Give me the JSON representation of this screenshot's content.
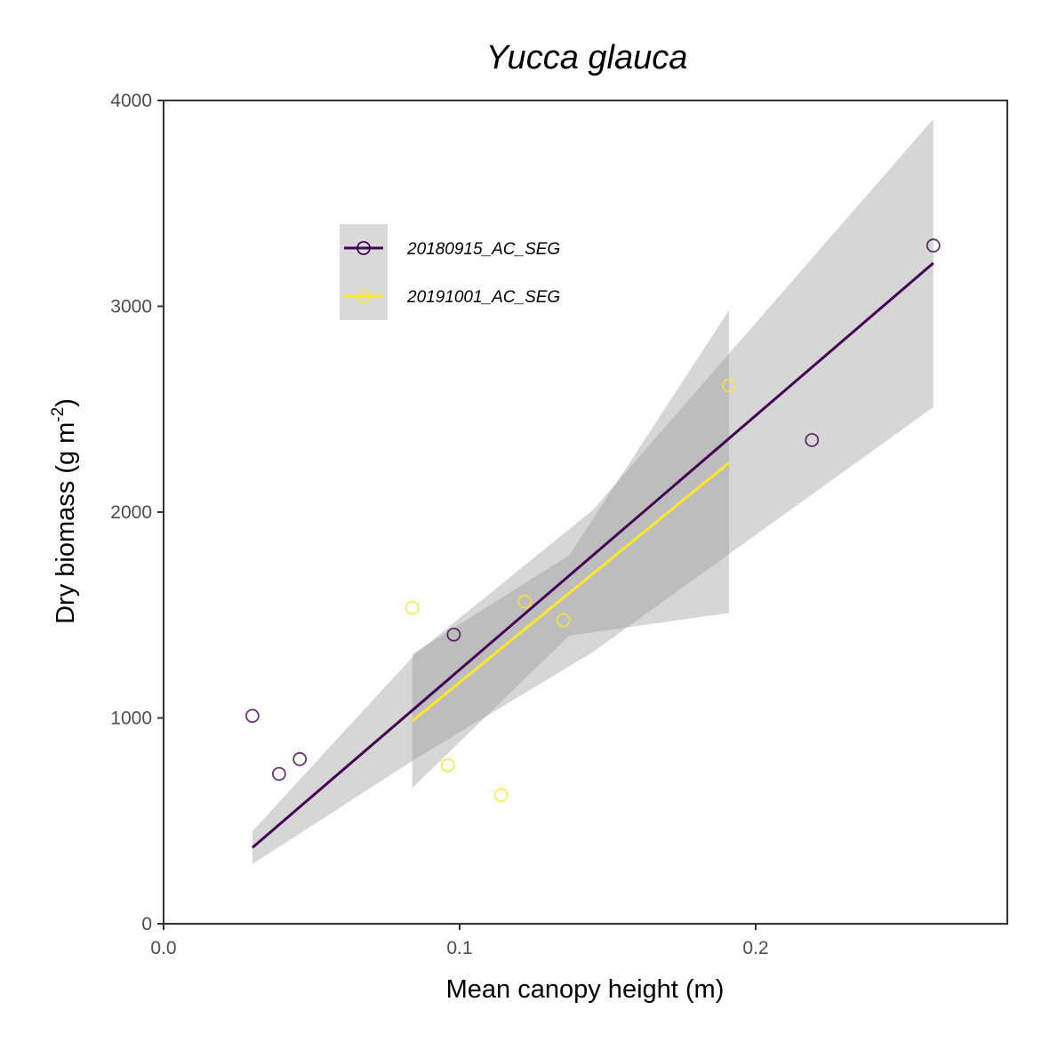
{
  "chart_data": {
    "type": "scatter",
    "title": "Yucca glauca",
    "xlabel": "Mean canopy height (m)",
    "ylabel_main": "Dry biomass (g m",
    "ylabel_sup": "-2",
    "ylabel_close": ")",
    "xlim": [
      0,
      0.285
    ],
    "ylim": [
      0,
      4000
    ],
    "xticks": [
      0.0,
      0.1,
      0.2
    ],
    "xtick_labels": [
      "0.0",
      "0.1",
      "0.2"
    ],
    "yticks": [
      0,
      1000,
      2000,
      3000,
      4000
    ],
    "ytick_labels": [
      "0",
      "1000",
      "2000",
      "3000",
      "4000"
    ],
    "grid": false,
    "legend_position": "top-left",
    "series": [
      {
        "name": "20180915_AC_SEG",
        "color": "#440154",
        "points": [
          [
            0.03,
            1010
          ],
          [
            0.039,
            728
          ],
          [
            0.046,
            800
          ],
          [
            0.098,
            1405
          ],
          [
            0.219,
            2350
          ],
          [
            0.26,
            3295
          ]
        ],
        "fit_line": [
          [
            0.03,
            370
          ],
          [
            0.26,
            3210
          ]
        ],
        "confidence_band": [
          {
            "x": 0.03,
            "lower": 290,
            "upper": 450
          },
          {
            "x": 0.085,
            "lower": 800,
            "upper": 1310
          },
          {
            "x": 0.145,
            "lower": 1320,
            "upper": 2010
          },
          {
            "x": 0.26,
            "lower": 2510,
            "upper": 3910
          }
        ]
      },
      {
        "name": "20191001_AC_SEG",
        "color": "#FDE725",
        "points": [
          [
            0.084,
            1535
          ],
          [
            0.096,
            770
          ],
          [
            0.114,
            625
          ],
          [
            0.122,
            1565
          ],
          [
            0.135,
            1475
          ],
          [
            0.191,
            2615
          ]
        ],
        "fit_line": [
          [
            0.084,
            985
          ],
          [
            0.191,
            2240
          ]
        ],
        "confidence_band": [
          {
            "x": 0.084,
            "lower": 660,
            "upper": 1310
          },
          {
            "x": 0.137,
            "lower": 1400,
            "upper": 1790
          },
          {
            "x": 0.191,
            "lower": 1510,
            "upper": 2980
          }
        ]
      }
    ]
  }
}
